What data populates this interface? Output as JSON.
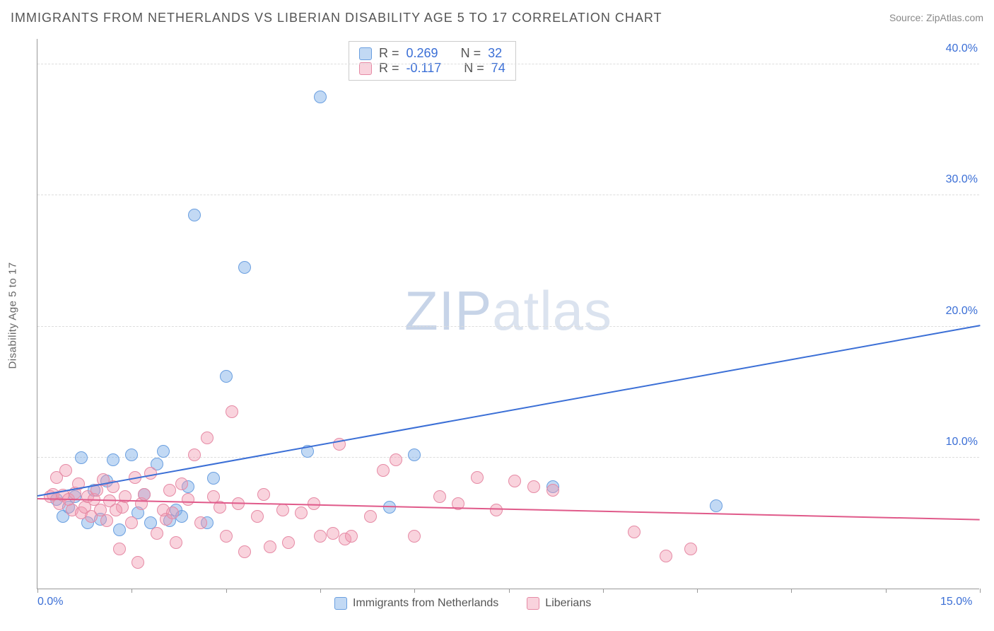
{
  "title": "IMMIGRANTS FROM NETHERLANDS VS LIBERIAN DISABILITY AGE 5 TO 17 CORRELATION CHART",
  "source_label": "Source: ",
  "source_value": "ZipAtlas.com",
  "ylabel": "Disability Age 5 to 17",
  "watermark": {
    "part1": "ZIP",
    "part2": "atlas"
  },
  "chart": {
    "type": "scatter",
    "xlim": [
      0,
      15
    ],
    "ylim": [
      0,
      42
    ],
    "x_ticks": [
      {
        "v": 0,
        "label": "0.0%"
      },
      {
        "v": 15,
        "label": "15.0%"
      }
    ],
    "x_tick_positions": [
      0,
      1.5,
      3,
      4.5,
      6,
      7.5,
      9,
      10.5,
      12,
      13.5,
      15
    ],
    "y_ticks": [
      {
        "v": 10,
        "label": "10.0%"
      },
      {
        "v": 20,
        "label": "20.0%"
      },
      {
        "v": 30,
        "label": "30.0%"
      },
      {
        "v": 40,
        "label": "40.0%"
      }
    ],
    "background_color": "#ffffff",
    "grid_color": "#dddddd",
    "axis_color": "#999999",
    "tick_label_color": "#3b6fd6",
    "marker_size": 18,
    "series": [
      {
        "name": "Immigrants from Netherlands",
        "fill": "rgba(120,170,230,0.45)",
        "stroke": "#6a9fe0",
        "trend_color": "#3b6fd6",
        "R": "0.269",
        "N": "32",
        "trend": {
          "x1": 0,
          "y1": 7.0,
          "x2": 15,
          "y2": 20.0
        },
        "points": [
          [
            0.3,
            6.8
          ],
          [
            0.4,
            5.5
          ],
          [
            0.5,
            6.2
          ],
          [
            0.6,
            7.0
          ],
          [
            0.7,
            10.0
          ],
          [
            0.8,
            5.0
          ],
          [
            0.9,
            7.5
          ],
          [
            1.0,
            5.3
          ],
          [
            1.1,
            8.2
          ],
          [
            1.2,
            9.8
          ],
          [
            1.3,
            4.5
          ],
          [
            1.5,
            10.2
          ],
          [
            1.6,
            5.8
          ],
          [
            1.7,
            7.2
          ],
          [
            1.8,
            5.0
          ],
          [
            1.9,
            9.5
          ],
          [
            2.0,
            10.5
          ],
          [
            2.1,
            5.2
          ],
          [
            2.2,
            6.0
          ],
          [
            2.3,
            5.5
          ],
          [
            2.5,
            28.5
          ],
          [
            2.7,
            5.0
          ],
          [
            2.8,
            8.4
          ],
          [
            3.0,
            16.2
          ],
          [
            3.3,
            24.5
          ],
          [
            4.3,
            10.5
          ],
          [
            4.5,
            37.5
          ],
          [
            5.6,
            6.2
          ],
          [
            6.0,
            10.2
          ],
          [
            8.2,
            7.8
          ],
          [
            10.8,
            6.3
          ],
          [
            2.4,
            7.8
          ]
        ]
      },
      {
        "name": "Liberians",
        "fill": "rgba(240,150,175,0.42)",
        "stroke": "#e68aa5",
        "trend_color": "#e05a8a",
        "R": "-0.117",
        "N": "74",
        "trend": {
          "x1": 0,
          "y1": 6.8,
          "x2": 15,
          "y2": 5.2
        },
        "points": [
          [
            0.2,
            7.0
          ],
          [
            0.25,
            7.2
          ],
          [
            0.3,
            8.5
          ],
          [
            0.35,
            6.5
          ],
          [
            0.4,
            7.1
          ],
          [
            0.5,
            6.8
          ],
          [
            0.55,
            6.0
          ],
          [
            0.6,
            7.3
          ],
          [
            0.65,
            8.0
          ],
          [
            0.7,
            5.8
          ],
          [
            0.75,
            6.2
          ],
          [
            0.8,
            7.0
          ],
          [
            0.85,
            5.5
          ],
          [
            0.9,
            6.8
          ],
          [
            0.95,
            7.5
          ],
          [
            1.0,
            6.0
          ],
          [
            1.05,
            8.3
          ],
          [
            1.1,
            5.2
          ],
          [
            1.15,
            6.7
          ],
          [
            1.2,
            7.8
          ],
          [
            1.3,
            3.0
          ],
          [
            1.35,
            6.2
          ],
          [
            1.4,
            7.0
          ],
          [
            1.5,
            5.0
          ],
          [
            1.55,
            8.5
          ],
          [
            1.6,
            2.0
          ],
          [
            1.65,
            6.5
          ],
          [
            1.7,
            7.2
          ],
          [
            1.8,
            8.8
          ],
          [
            1.9,
            4.2
          ],
          [
            2.0,
            6.0
          ],
          [
            2.05,
            5.3
          ],
          [
            2.1,
            7.5
          ],
          [
            2.2,
            3.5
          ],
          [
            2.3,
            8.0
          ],
          [
            2.4,
            6.8
          ],
          [
            2.5,
            10.2
          ],
          [
            2.6,
            5.0
          ],
          [
            2.7,
            11.5
          ],
          [
            2.8,
            7.0
          ],
          [
            2.9,
            6.2
          ],
          [
            3.0,
            4.0
          ],
          [
            3.1,
            13.5
          ],
          [
            3.2,
            6.5
          ],
          [
            3.3,
            2.8
          ],
          [
            3.5,
            5.5
          ],
          [
            3.6,
            7.2
          ],
          [
            3.7,
            3.2
          ],
          [
            3.9,
            6.0
          ],
          [
            4.0,
            3.5
          ],
          [
            4.2,
            5.8
          ],
          [
            4.4,
            6.5
          ],
          [
            4.5,
            4.0
          ],
          [
            4.7,
            4.2
          ],
          [
            4.8,
            11.0
          ],
          [
            4.9,
            3.8
          ],
          [
            5.0,
            4.0
          ],
          [
            5.3,
            5.5
          ],
          [
            5.5,
            9.0
          ],
          [
            5.7,
            9.8
          ],
          [
            6.0,
            4.0
          ],
          [
            6.4,
            7.0
          ],
          [
            6.7,
            6.5
          ],
          [
            7.0,
            8.5
          ],
          [
            7.3,
            6.0
          ],
          [
            7.6,
            8.2
          ],
          [
            7.9,
            7.8
          ],
          [
            8.2,
            7.5
          ],
          [
            9.5,
            4.3
          ],
          [
            10.0,
            2.5
          ],
          [
            10.4,
            3.0
          ],
          [
            2.15,
            5.8
          ],
          [
            1.25,
            6.0
          ],
          [
            0.45,
            9.0
          ]
        ]
      }
    ]
  },
  "stats_labels": {
    "R": "R =",
    "N": "N ="
  },
  "bottom_legend": [
    {
      "label": "Immigrants from Netherlands",
      "series": 0
    },
    {
      "label": "Liberians",
      "series": 1
    }
  ]
}
